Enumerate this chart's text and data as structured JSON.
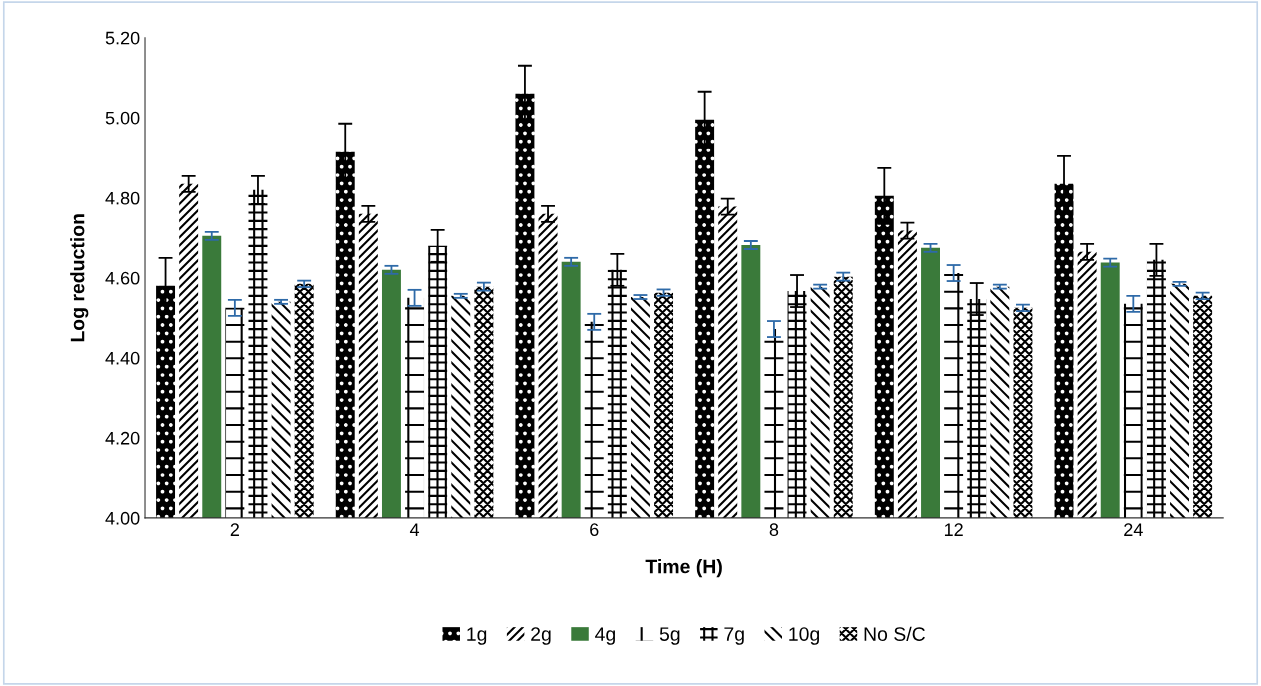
{
  "chart_data": {
    "type": "bar",
    "xlabel": "Time (H)",
    "ylabel": "Log reduction",
    "categories": [
      "2",
      "4",
      "6",
      "8",
      "12",
      "24"
    ],
    "ylim": [
      4.0,
      5.2
    ],
    "yticks": [
      {
        "value": 4.0,
        "label": "4.00"
      },
      {
        "value": 4.2,
        "label": "4.20"
      },
      {
        "value": 4.4,
        "label": "4.40"
      },
      {
        "value": 4.6,
        "label": "4.60"
      },
      {
        "value": 4.8,
        "label": "4.80"
      },
      {
        "value": 5.0,
        "label": "5.00"
      },
      {
        "value": 5.2,
        "label": "5.20"
      }
    ],
    "grid": false,
    "legend": "bottom",
    "series": [
      {
        "name": "1g",
        "color": "#000000",
        "values": [
          4.58,
          4.915,
          5.06,
          4.995,
          4.805,
          4.835
        ],
        "errors": [
          0.07,
          0.07,
          0.07,
          0.07,
          0.07,
          0.07
        ]
      },
      {
        "name": "2g",
        "color": "#ffffff",
        "values": [
          4.835,
          4.76,
          4.76,
          4.778,
          4.718,
          4.665
        ],
        "errors": [
          0.02,
          0.02,
          0.02,
          0.02,
          0.02,
          0.02
        ]
      },
      {
        "name": "4g",
        "color": "#3a7a3a",
        "values": [
          4.705,
          4.62,
          4.64,
          4.682,
          4.675,
          4.638
        ],
        "errors": [
          0.01,
          0.01,
          0.01,
          0.01,
          0.01,
          0.01
        ]
      },
      {
        "name": "5g",
        "color": "#ffffff",
        "values": [
          4.525,
          4.55,
          4.49,
          4.472,
          4.612,
          4.535
        ],
        "errors": [
          0.02,
          0.02,
          0.02,
          0.02,
          0.02,
          0.02
        ]
      },
      {
        "name": "7g",
        "color": "#ffffff",
        "values": [
          4.82,
          4.68,
          4.62,
          4.567,
          4.547,
          4.645
        ],
        "errors": [
          0.035,
          0.04,
          0.04,
          0.04,
          0.04,
          0.04
        ]
      },
      {
        "name": "10g",
        "color": "#ffffff",
        "values": [
          4.54,
          4.555,
          4.552,
          4.578,
          4.578,
          4.585
        ],
        "errors": [
          0.005,
          0.005,
          0.005,
          0.005,
          0.005,
          0.005
        ]
      },
      {
        "name": "No S/C",
        "color": "#ffffff",
        "values": [
          4.585,
          4.578,
          4.563,
          4.603,
          4.525,
          4.555
        ],
        "errors": [
          0.008,
          0.01,
          0.008,
          0.01,
          0.008,
          0.008
        ]
      }
    ]
  }
}
